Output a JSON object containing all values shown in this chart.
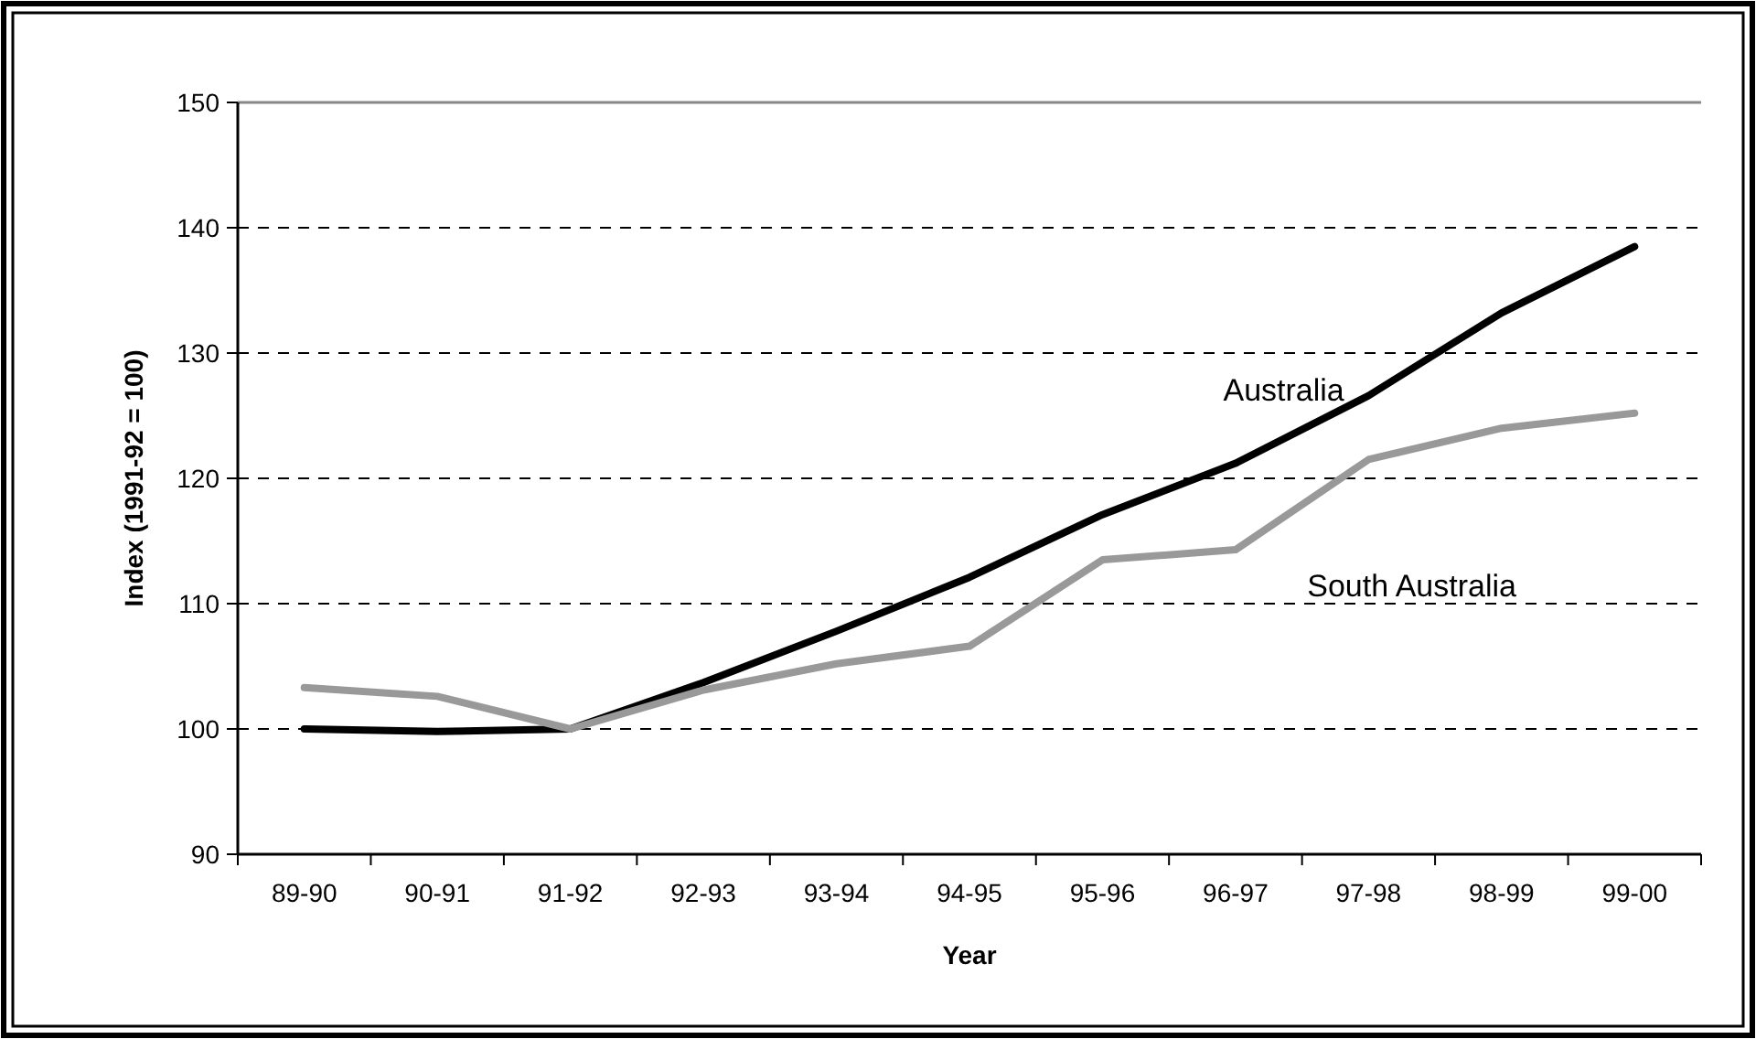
{
  "chart_data": {
    "type": "line",
    "xlabel": "Year",
    "ylabel": "Index (1991-92 = 100)",
    "categories": [
      "89-90",
      "90-91",
      "91-92",
      "92-93",
      "93-94",
      "94-95",
      "95-96",
      "96-97",
      "97-98",
      "98-99",
      "99-00"
    ],
    "series": [
      {
        "name": "Australia",
        "color": "#000000",
        "values": [
          100,
          99.8,
          100,
          103.7,
          107.8,
          112.1,
          117.1,
          121.2,
          126.6,
          133.2,
          138.5
        ]
      },
      {
        "name": "South Australia",
        "color": "#999999",
        "values": [
          103.3,
          102.6,
          100,
          103.1,
          105.2,
          106.6,
          113.5,
          114.3,
          121.5,
          124.0,
          125.2
        ]
      }
    ],
    "ylim": [
      90,
      150
    ],
    "yticks": [
      90,
      100,
      110,
      120,
      130,
      140,
      150
    ],
    "grid": "y",
    "marker": "none",
    "line_style": "solid"
  }
}
